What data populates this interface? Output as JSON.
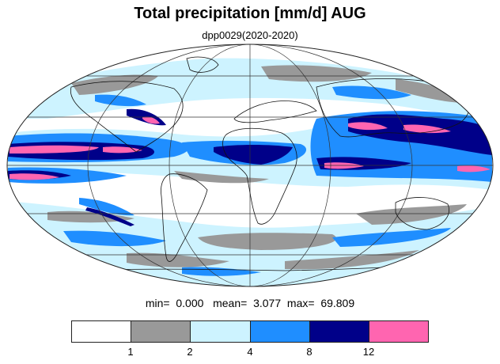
{
  "title": "Total precipitation [mm/d] AUG",
  "subtitle": "dpp0029(2020-2020)",
  "stats": {
    "min_label": "min=",
    "min": "0.000",
    "mean_label": "mean=",
    "mean": "3.077",
    "max_label": "max=",
    "max": "69.809"
  },
  "legend": {
    "colors": [
      "#ffffff",
      "#999999",
      "#cdf3ff",
      "#1f8eff",
      "#000089",
      "#ff65b0"
    ],
    "ticks": [
      "1",
      "2",
      "4",
      "8",
      "12"
    ]
  },
  "map": {
    "projection": "mollweide",
    "zero_longitude": 0,
    "colors": {
      "white": "#ffffff",
      "grey": "#999999",
      "lightblue": "#cdf3ff",
      "blue": "#1f8eff",
      "navy": "#000089",
      "pink": "#ff65b0",
      "coast": "#111111",
      "grid": "#333333"
    }
  }
}
